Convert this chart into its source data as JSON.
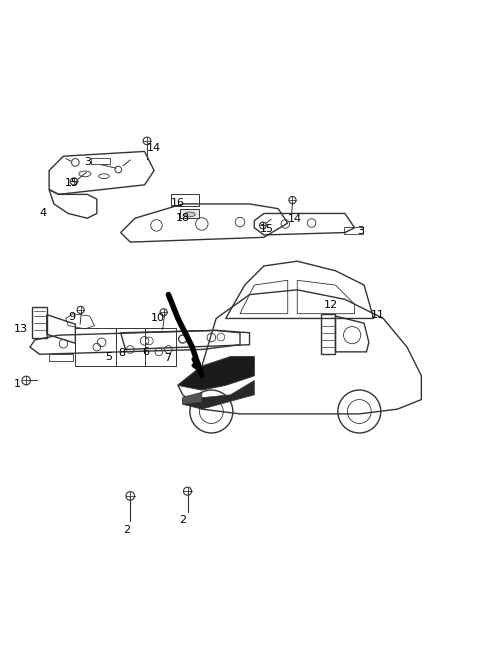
{
  "bg_color": "#ffffff",
  "line_color": "#333333",
  "label_color": "#000000",
  "fig_width": 4.8,
  "fig_height": 6.56,
  "dpi": 100
}
